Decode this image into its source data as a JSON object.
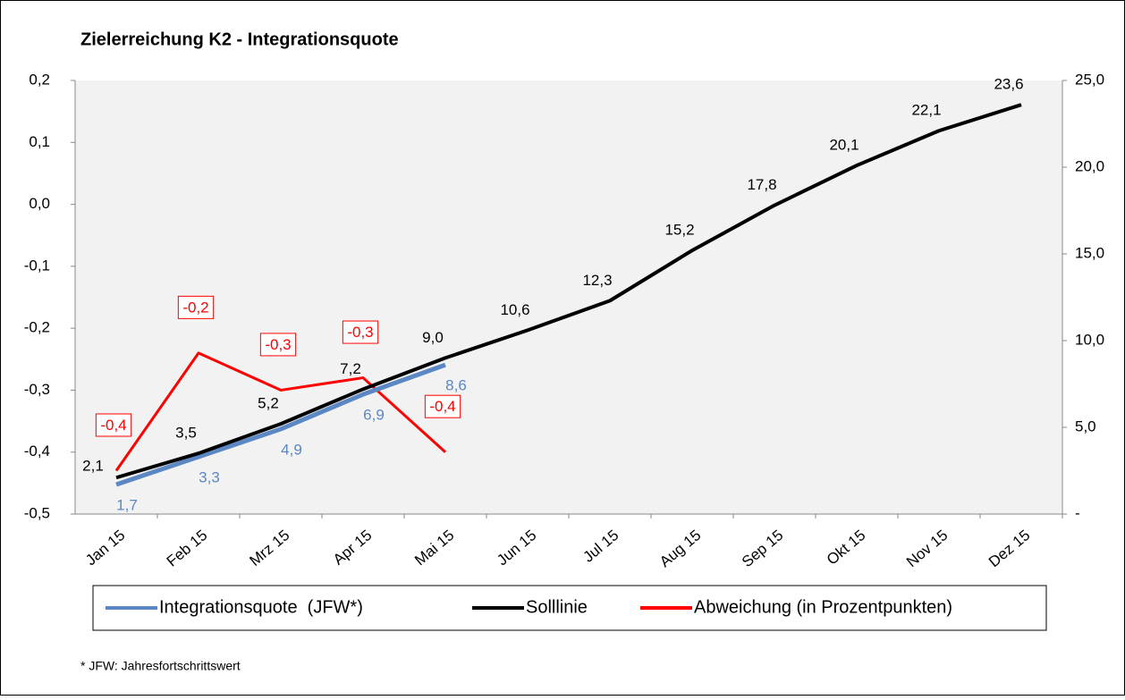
{
  "chart_data": {
    "type": "line",
    "title": "Zielerreichung K2 - Integrationsquote",
    "categories": [
      "Jan 15",
      "Feb 15",
      "Mrz 15",
      "Apr 15",
      "Mai 15",
      "Jun 15",
      "Jul 15",
      "Aug 15",
      "Sep 15",
      "Okt 15",
      "Nov 15",
      "Dez 15"
    ],
    "series": [
      {
        "name": "Integrationsquote  (JFW*)",
        "color": "#5b87c5",
        "axis": "y2",
        "values": [
          1.7,
          3.3,
          4.9,
          6.9,
          8.6,
          null,
          null,
          null,
          null,
          null,
          null,
          null
        ],
        "value_labels": [
          "1,7",
          "3,3",
          "4,9",
          "6,9",
          "8,6",
          null,
          null,
          null,
          null,
          null,
          null,
          null
        ]
      },
      {
        "name": "Solllinie",
        "color": "#000000",
        "axis": "y2",
        "values": [
          2.1,
          3.5,
          5.2,
          7.2,
          9.0,
          10.6,
          12.3,
          15.2,
          17.8,
          20.1,
          22.1,
          23.6
        ],
        "value_labels": [
          "2,1",
          "3,5",
          "5,2",
          "7,2",
          "9,0",
          "10,6",
          "12,3",
          "15,2",
          "17,8",
          "20,1",
          "22,1",
          "23,6"
        ]
      },
      {
        "name": "Abweichung (in Prozentpunkten)",
        "color": "#ff0000",
        "values": [
          -0.43,
          -0.24,
          -0.3,
          -0.28,
          -0.4,
          null,
          null,
          null,
          null,
          null,
          null,
          null
        ],
        "value_labels": [
          "-0,4",
          "-0,2",
          "-0,3",
          "-0,3",
          "-0,4",
          null,
          null,
          null,
          null,
          null,
          null,
          null
        ]
      }
    ],
    "ylim": [
      -0.5,
      0.2
    ],
    "yticks": [
      {
        "value": -0.5,
        "label": "-0,5"
      },
      {
        "value": -0.4,
        "label": "-0,4"
      },
      {
        "value": -0.3,
        "label": "-0,3"
      },
      {
        "value": -0.2,
        "label": "-0,2"
      },
      {
        "value": -0.1,
        "label": "-0,1"
      },
      {
        "value": 0,
        "label": "0,0"
      },
      {
        "value": 0.1,
        "label": "0,1"
      },
      {
        "value": 0.2,
        "label": "0,2"
      }
    ],
    "y2lim": [
      0,
      25
    ],
    "y2ticks": [
      {
        "value": 0,
        "label": "-"
      },
      {
        "value": 5,
        "label": "5,0"
      },
      {
        "value": 10,
        "label": "10,0"
      },
      {
        "value": 15,
        "label": "15,0"
      },
      {
        "value": 20,
        "label": "20,0"
      },
      {
        "value": 25,
        "label": "25,0"
      }
    ],
    "footnote": "* JFW: Jahresfortschrittswert"
  }
}
